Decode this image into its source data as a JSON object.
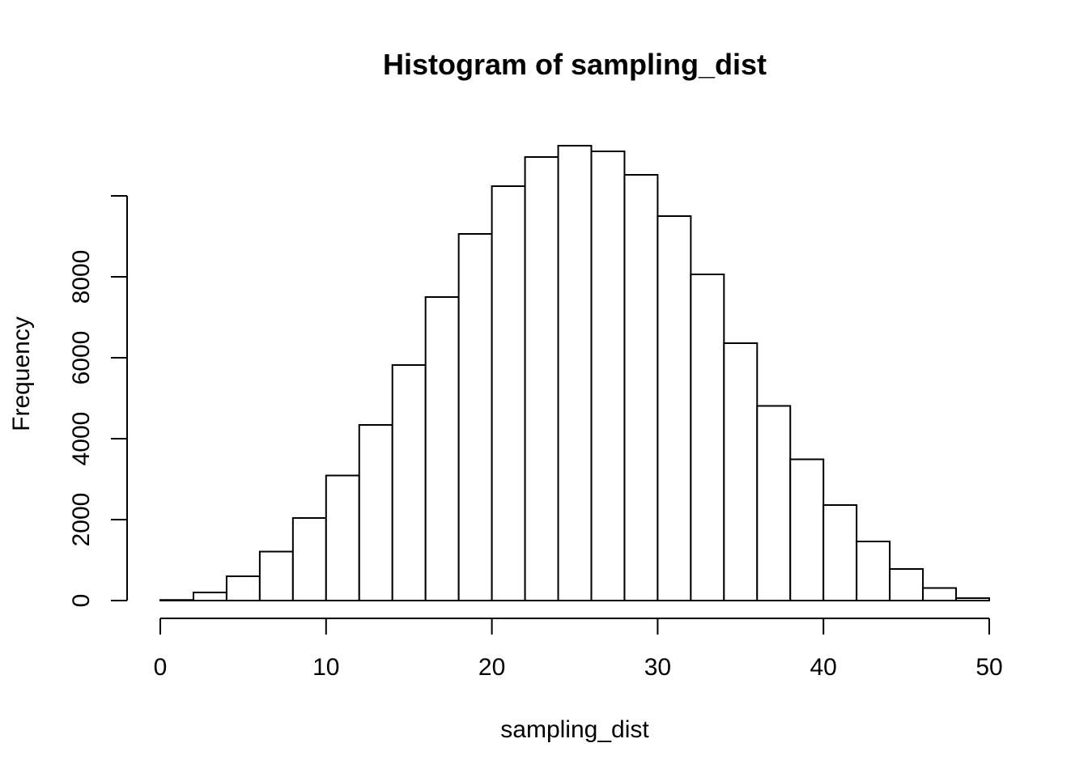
{
  "chart_data": {
    "type": "bar",
    "title": "Histogram of sampling_dist",
    "xlabel": "sampling_dist",
    "ylabel": "Frequency",
    "bin_edges": [
      0,
      2,
      4,
      6,
      8,
      10,
      12,
      14,
      16,
      18,
      20,
      22,
      24,
      26,
      28,
      30,
      32,
      34,
      36,
      38,
      40,
      42,
      44,
      46,
      48,
      50
    ],
    "values": [
      15,
      200,
      600,
      1210,
      2040,
      3090,
      4340,
      5820,
      7500,
      9060,
      10240,
      10960,
      11240,
      11100,
      10520,
      9500,
      8060,
      6360,
      4810,
      3490,
      2360,
      1460,
      780,
      310,
      60
    ],
    "xlim": [
      0,
      50
    ],
    "ylim": [
      0,
      10000
    ],
    "x_ticks": [
      "0",
      "10",
      "20",
      "30",
      "40",
      "50"
    ],
    "y_ticks": [
      "0",
      "2000",
      "4000",
      "6000",
      "8000"
    ],
    "grid": false,
    "colors": {
      "bar_fill": "#ffffff",
      "bar_stroke": "#000000"
    }
  }
}
